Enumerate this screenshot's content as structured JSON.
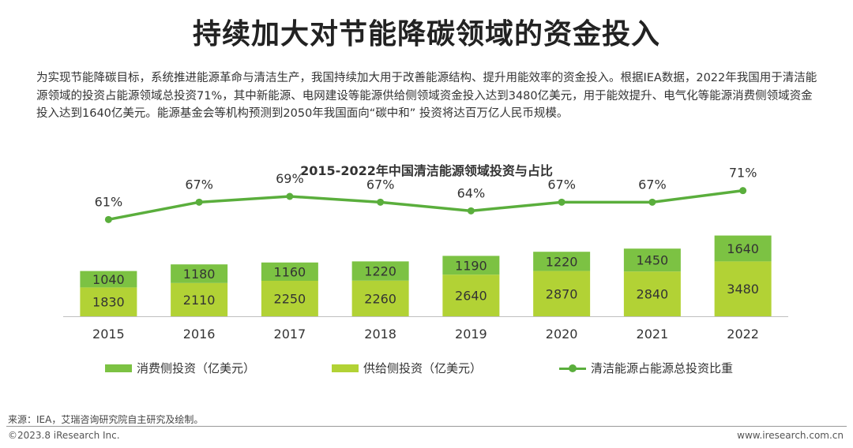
{
  "page": {
    "title": "持续加大对节能降碳领域的资金投入",
    "intro": "为实现节能降碳目标，系统推进能源革命与清洁生产，我国持续加大用于改善能源结构、提升用能效率的资金投入。根据IEA数据，2022年我国用于清洁能源领域的投资占能源领域总投资71%，其中新能源、电网建设等能源供给侧领域资金投入达到3480亿美元，用于能效提升、电气化等能源消费侧领域资金投入达到1640亿美元。能源基金会等机构预测到2050年我国面向“碳中和” 投资将达百万亿人民币规模。",
    "source": "来源：IEA，艾瑞咨询研究院自主研究及绘制。",
    "copyright": "©2023.8 iResearch Inc.",
    "website": "www.iresearch.com.cn"
  },
  "colors": {
    "consumption": "#7cc243",
    "supply": "#b2d235",
    "line": "#5aae3c",
    "axis": "#bfbfbf",
    "label_in_bar": "#333333"
  },
  "chart_data": {
    "type": "bar",
    "stacked": true,
    "title": "2015-2022年中国清洁能源领域投资与占比",
    "categories": [
      "2015",
      "2016",
      "2017",
      "2018",
      "2019",
      "2020",
      "2021",
      "2022"
    ],
    "series": [
      {
        "name": "供给侧投资（亿美元）",
        "values": [
          1830,
          2110,
          2250,
          2260,
          2640,
          2870,
          2840,
          3480
        ]
      },
      {
        "name": "消费侧投资（亿美元）",
        "values": [
          1040,
          1180,
          1160,
          1220,
          1190,
          1220,
          1450,
          1640
        ]
      }
    ],
    "line_series": {
      "name": "清洁能源占能源总投资比重",
      "values": [
        61,
        67,
        69,
        67,
        64,
        67,
        67,
        71
      ],
      "labels": [
        "61%",
        "67%",
        "69%",
        "67%",
        "64%",
        "67%",
        "67%",
        "71%"
      ],
      "ylim": [
        30,
        75
      ]
    },
    "ylim": [
      0,
      6000
    ],
    "grid": false,
    "legend_position": "bottom"
  }
}
